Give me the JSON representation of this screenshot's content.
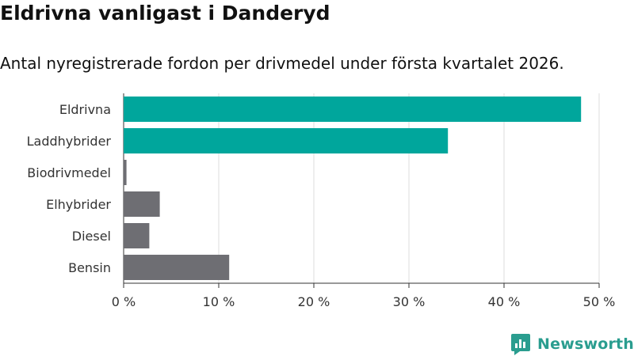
{
  "header": {
    "title": "Eldrivna vanligast i Danderyd",
    "subtitle": "Antal nyregistrerade fordon per drivmedel under första kvartalet 2026."
  },
  "brand": {
    "name": "Newsworthy",
    "logo_icon": "newsworthy-logo-icon",
    "color": "#2a9d8f"
  },
  "chart_data": {
    "type": "bar",
    "orientation": "horizontal",
    "categories": [
      "Eldrivna",
      "Laddhybrider",
      "Biodrivmedel",
      "Elhybrider",
      "Diesel",
      "Bensin"
    ],
    "values": [
      48.1,
      34.1,
      0.3,
      3.8,
      2.7,
      11.1
    ],
    "colors": [
      "#00a69c",
      "#00a69c",
      "#6e6e73",
      "#6e6e73",
      "#6e6e73",
      "#6e6e73"
    ],
    "xlim": [
      0,
      50
    ],
    "xticks": [
      0,
      10,
      20,
      30,
      40,
      50
    ],
    "xtick_labels": [
      "0 %",
      "10 %",
      "20 %",
      "30 %",
      "40 %",
      "50 %"
    ],
    "grid": "vertical",
    "legend": "none"
  }
}
